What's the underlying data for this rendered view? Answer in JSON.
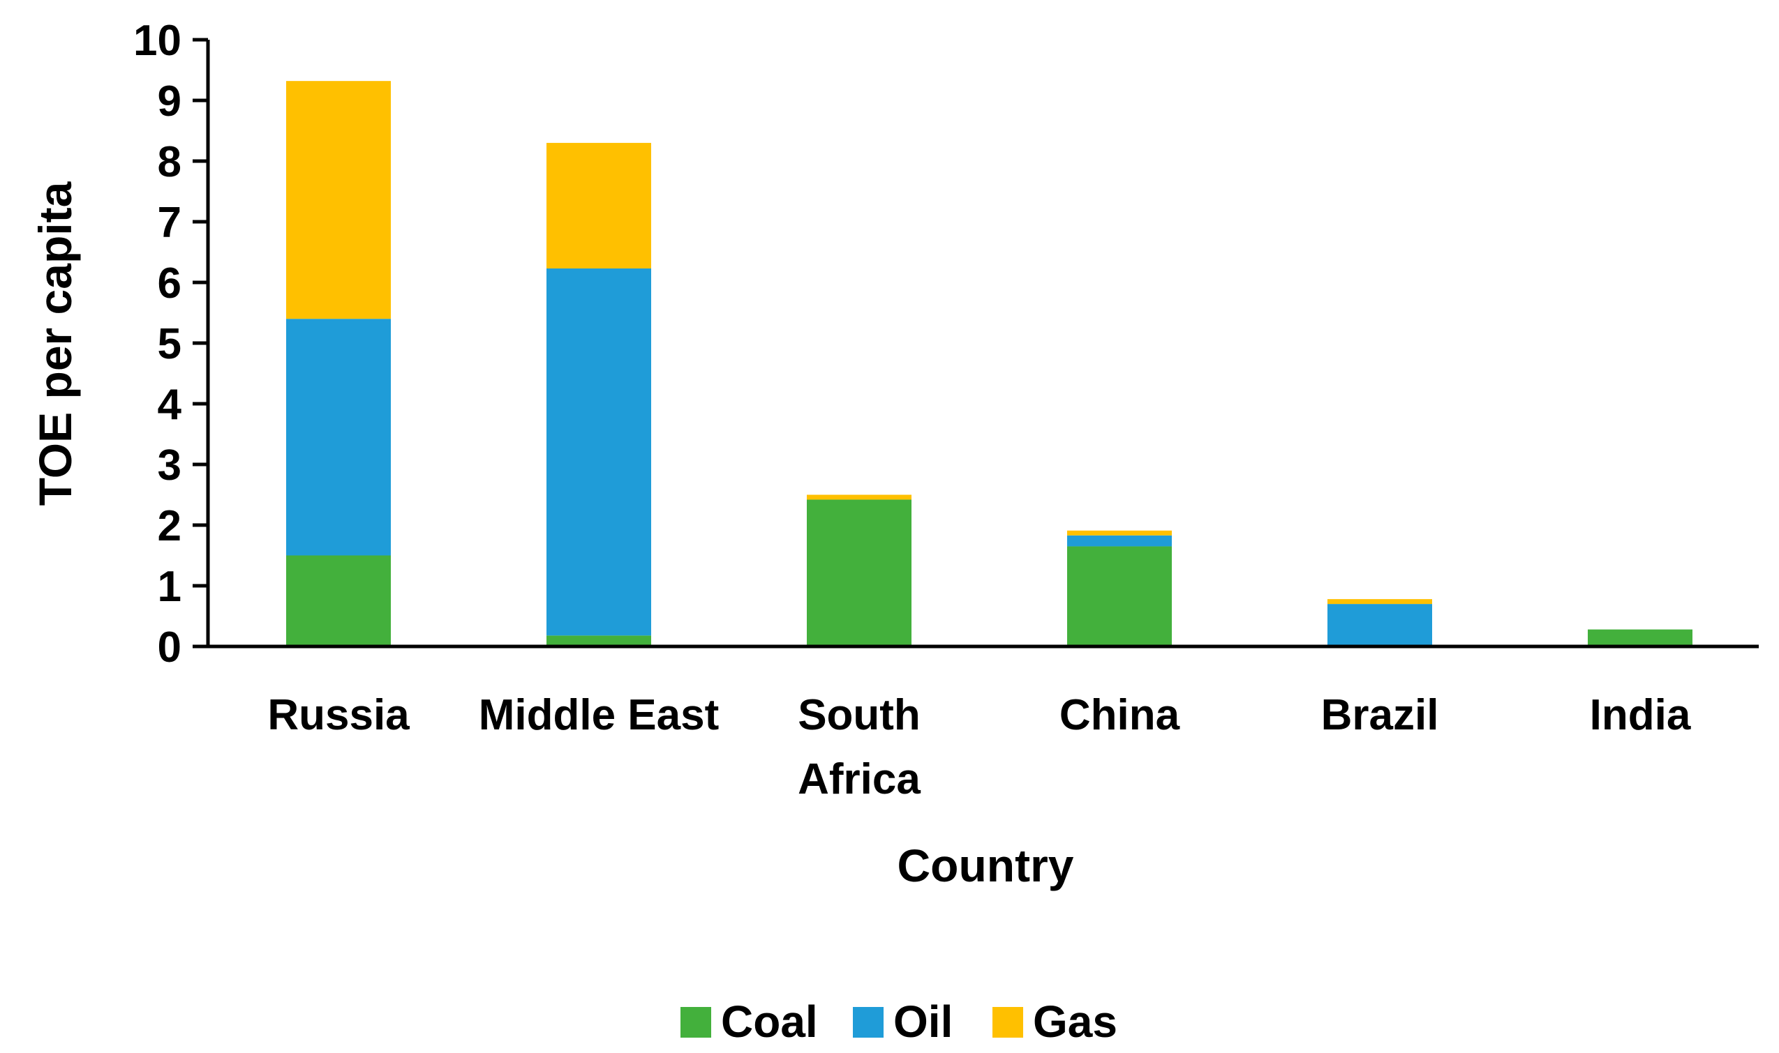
{
  "chart_data": {
    "type": "bar",
    "stacked": true,
    "categories": [
      [
        "Russia"
      ],
      [
        "Middle East"
      ],
      [
        "South",
        "Africa"
      ],
      [
        "China"
      ],
      [
        "Brazil"
      ],
      [
        "India"
      ]
    ],
    "series": [
      {
        "name": "Coal",
        "color": "#43b03c",
        "values": [
          1.5,
          0.18,
          2.42,
          1.65,
          0.0,
          0.28
        ]
      },
      {
        "name": "Oil",
        "color": "#1f9cd8",
        "values": [
          3.9,
          6.05,
          0.0,
          0.18,
          0.7,
          0.0
        ]
      },
      {
        "name": "Gas",
        "color": "#ffc000",
        "values": [
          3.92,
          2.07,
          0.08,
          0.08,
          0.08,
          0.0
        ]
      }
    ],
    "xlabel": "Country",
    "ylabel": "TOE per capita",
    "ylim": [
      0,
      10
    ],
    "yticks": [
      0,
      1,
      2,
      3,
      4,
      5,
      6,
      7,
      8,
      9,
      10
    ],
    "grid": false,
    "legend_position": "bottom"
  }
}
